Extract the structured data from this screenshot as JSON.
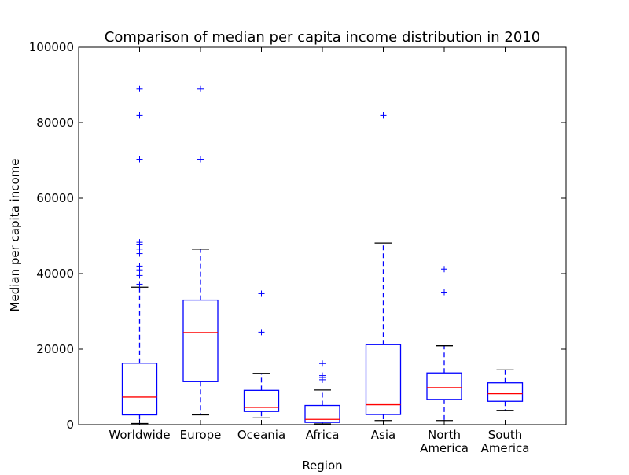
{
  "chart_data": {
    "type": "box",
    "title": "Comparison of median per capita income distribution in 2010",
    "xlabel": "Region",
    "ylabel": "Median per capita income",
    "ylim": [
      0,
      100000
    ],
    "yticks": [
      0,
      20000,
      40000,
      60000,
      80000,
      100000
    ],
    "ytick_labels": [
      "0",
      "20000",
      "40000",
      "60000",
      "80000",
      "100000"
    ],
    "grid": false,
    "colors": {
      "box": "#0000ff",
      "median": "#ff0000",
      "cap": "#000000",
      "flier": "#0000ff"
    },
    "categories": [
      {
        "label": [
          "Worldwide"
        ],
        "whisker_low": 300,
        "q1": 2600,
        "median": 7300,
        "q3": 16300,
        "whisker_high": 36400,
        "outliers": [
          37200,
          39500,
          41000,
          42000,
          45300,
          46500,
          47800,
          48300,
          70300,
          82000,
          89000
        ]
      },
      {
        "label": [
          "Europe"
        ],
        "whisker_low": 2600,
        "q1": 11400,
        "median": 24400,
        "q3": 33000,
        "whisker_high": 46500,
        "outliers": [
          70300,
          89000
        ]
      },
      {
        "label": [
          "Oceania"
        ],
        "whisker_low": 1800,
        "q1": 3500,
        "median": 4600,
        "q3": 9100,
        "whisker_high": 13600,
        "outliers": [
          24500,
          34700
        ]
      },
      {
        "label": [
          "Africa"
        ],
        "whisker_low": 200,
        "q1": 600,
        "median": 1400,
        "q3": 5100,
        "whisker_high": 9200,
        "outliers": [
          11900,
          12500,
          13000,
          16200
        ]
      },
      {
        "label": [
          "Asia"
        ],
        "whisker_low": 1100,
        "q1": 2700,
        "median": 5300,
        "q3": 21200,
        "whisker_high": 48100,
        "outliers": [
          82000
        ]
      },
      {
        "label": [
          "North",
          "America"
        ],
        "whisker_low": 1100,
        "q1": 6700,
        "median": 9800,
        "q3": 13700,
        "whisker_high": 20900,
        "outliers": [
          35100,
          41200
        ]
      },
      {
        "label": [
          "South",
          "America"
        ],
        "whisker_low": 3800,
        "q1": 6200,
        "median": 8200,
        "q3": 11100,
        "whisker_high": 14500,
        "outliers": []
      }
    ]
  }
}
